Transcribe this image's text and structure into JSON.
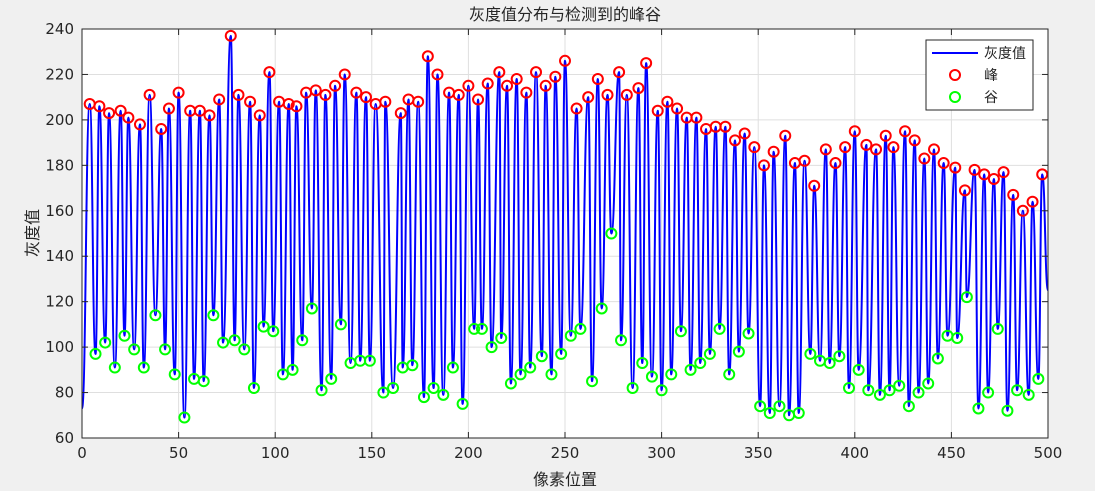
{
  "chart_data": {
    "type": "line",
    "title": "灰度值分布与检测到的峰谷",
    "xlabel": "像素位置",
    "ylabel": "灰度值",
    "xlim": [
      0,
      500
    ],
    "ylim": [
      60,
      240
    ],
    "x_ticks": [
      0,
      50,
      100,
      150,
      200,
      250,
      300,
      350,
      400,
      450,
      500
    ],
    "y_ticks": [
      60,
      80,
      100,
      120,
      140,
      160,
      180,
      200,
      220,
      240
    ],
    "grid": true,
    "legend_position": "top-right",
    "colors": {
      "line": "#0000ff",
      "peak": "#ff0000",
      "valley": "#00ff00"
    },
    "legend": [
      {
        "label": "灰度值",
        "kind": "line"
      },
      {
        "label": "峰",
        "kind": "peak"
      },
      {
        "label": "谷",
        "kind": "valley"
      }
    ],
    "start": [
      0,
      73
    ],
    "end": [
      500,
      125
    ],
    "peaks": [
      [
        4,
        207
      ],
      [
        9,
        206
      ],
      [
        14,
        203
      ],
      [
        20,
        204
      ],
      [
        24,
        201
      ],
      [
        30,
        198
      ],
      [
        35,
        211
      ],
      [
        41,
        196
      ],
      [
        45,
        205
      ],
      [
        50,
        212
      ],
      [
        56,
        204
      ],
      [
        61,
        204
      ],
      [
        66,
        202
      ],
      [
        71,
        209
      ],
      [
        77,
        237
      ],
      [
        81,
        211
      ],
      [
        87,
        208
      ],
      [
        92,
        202
      ],
      [
        97,
        221
      ],
      [
        102,
        208
      ],
      [
        107,
        207
      ],
      [
        111,
        206
      ],
      [
        116,
        212
      ],
      [
        121,
        213
      ],
      [
        126,
        211
      ],
      [
        131,
        215
      ],
      [
        136,
        220
      ],
      [
        142,
        212
      ],
      [
        147,
        210
      ],
      [
        152,
        207
      ],
      [
        157,
        208
      ],
      [
        165,
        203
      ],
      [
        169,
        209
      ],
      [
        174,
        208
      ],
      [
        179,
        228
      ],
      [
        184,
        220
      ],
      [
        190,
        212
      ],
      [
        195,
        211
      ],
      [
        200,
        215
      ],
      [
        205,
        209
      ],
      [
        210,
        216
      ],
      [
        216,
        221
      ],
      [
        220,
        215
      ],
      [
        225,
        218
      ],
      [
        230,
        212
      ],
      [
        235,
        221
      ],
      [
        240,
        215
      ],
      [
        245,
        219
      ],
      [
        250,
        226
      ],
      [
        256,
        205
      ],
      [
        262,
        210
      ],
      [
        267,
        218
      ],
      [
        272,
        211
      ],
      [
        278,
        221
      ],
      [
        282,
        211
      ],
      [
        288,
        214
      ],
      [
        292,
        225
      ],
      [
        298,
        204
      ],
      [
        303,
        208
      ],
      [
        308,
        205
      ],
      [
        313,
        201
      ],
      [
        318,
        201
      ],
      [
        323,
        196
      ],
      [
        328,
        197
      ],
      [
        333,
        197
      ],
      [
        338,
        191
      ],
      [
        343,
        194
      ],
      [
        348,
        188
      ],
      [
        353,
        180
      ],
      [
        358,
        186
      ],
      [
        364,
        193
      ],
      [
        369,
        181
      ],
      [
        374,
        182
      ],
      [
        379,
        171
      ],
      [
        385,
        187
      ],
      [
        390,
        181
      ],
      [
        395,
        188
      ],
      [
        400,
        195
      ],
      [
        406,
        189
      ],
      [
        411,
        187
      ],
      [
        416,
        193
      ],
      [
        420,
        188
      ],
      [
        426,
        195
      ],
      [
        431,
        191
      ],
      [
        436,
        183
      ],
      [
        441,
        187
      ],
      [
        446,
        181
      ],
      [
        452,
        179
      ],
      [
        457,
        169
      ],
      [
        462,
        178
      ],
      [
        467,
        176
      ],
      [
        472,
        174
      ],
      [
        477,
        177
      ],
      [
        482,
        167
      ],
      [
        487,
        160
      ],
      [
        492,
        164
      ],
      [
        497,
        176
      ]
    ],
    "valleys": [
      [
        7,
        97
      ],
      [
        12,
        102
      ],
      [
        17,
        91
      ],
      [
        22,
        105
      ],
      [
        27,
        99
      ],
      [
        32,
        91
      ],
      [
        38,
        114
      ],
      [
        43,
        99
      ],
      [
        48,
        88
      ],
      [
        53,
        69
      ],
      [
        58,
        86
      ],
      [
        63,
        85
      ],
      [
        68,
        114
      ],
      [
        73,
        102
      ],
      [
        79,
        103
      ],
      [
        84,
        99
      ],
      [
        89,
        82
      ],
      [
        94,
        109
      ],
      [
        99,
        107
      ],
      [
        104,
        88
      ],
      [
        109,
        90
      ],
      [
        114,
        103
      ],
      [
        119,
        117
      ],
      [
        124,
        81
      ],
      [
        129,
        86
      ],
      [
        134,
        110
      ],
      [
        139,
        93
      ],
      [
        144,
        94
      ],
      [
        149,
        94
      ],
      [
        156,
        80
      ],
      [
        161,
        82
      ],
      [
        166,
        91
      ],
      [
        171,
        92
      ],
      [
        177,
        78
      ],
      [
        182,
        82
      ],
      [
        187,
        79
      ],
      [
        192,
        91
      ],
      [
        197,
        75
      ],
      [
        203,
        108
      ],
      [
        207,
        108
      ],
      [
        212,
        100
      ],
      [
        217,
        104
      ],
      [
        222,
        84
      ],
      [
        227,
        88
      ],
      [
        232,
        91
      ],
      [
        238,
        96
      ],
      [
        243,
        88
      ],
      [
        248,
        97
      ],
      [
        253,
        105
      ],
      [
        258,
        108
      ],
      [
        264,
        85
      ],
      [
        269,
        117
      ],
      [
        274,
        150
      ],
      [
        279,
        103
      ],
      [
        285,
        82
      ],
      [
        290,
        93
      ],
      [
        295,
        87
      ],
      [
        300,
        81
      ],
      [
        305,
        88
      ],
      [
        310,
        107
      ],
      [
        315,
        90
      ],
      [
        320,
        93
      ],
      [
        325,
        97
      ],
      [
        330,
        108
      ],
      [
        335,
        88
      ],
      [
        340,
        98
      ],
      [
        345,
        106
      ],
      [
        351,
        74
      ],
      [
        356,
        71
      ],
      [
        361,
        74
      ],
      [
        366,
        70
      ],
      [
        371,
        71
      ],
      [
        377,
        97
      ],
      [
        382,
        94
      ],
      [
        387,
        93
      ],
      [
        392,
        96
      ],
      [
        397,
        82
      ],
      [
        402,
        90
      ],
      [
        407,
        81
      ],
      [
        413,
        79
      ],
      [
        418,
        81
      ],
      [
        423,
        83
      ],
      [
        428,
        74
      ],
      [
        433,
        80
      ],
      [
        438,
        84
      ],
      [
        443,
        95
      ],
      [
        448,
        105
      ],
      [
        453,
        104
      ],
      [
        458,
        122
      ],
      [
        464,
        73
      ],
      [
        469,
        80
      ],
      [
        474,
        108
      ],
      [
        479,
        72
      ],
      [
        484,
        81
      ],
      [
        490,
        79
      ],
      [
        495,
        86
      ]
    ]
  }
}
